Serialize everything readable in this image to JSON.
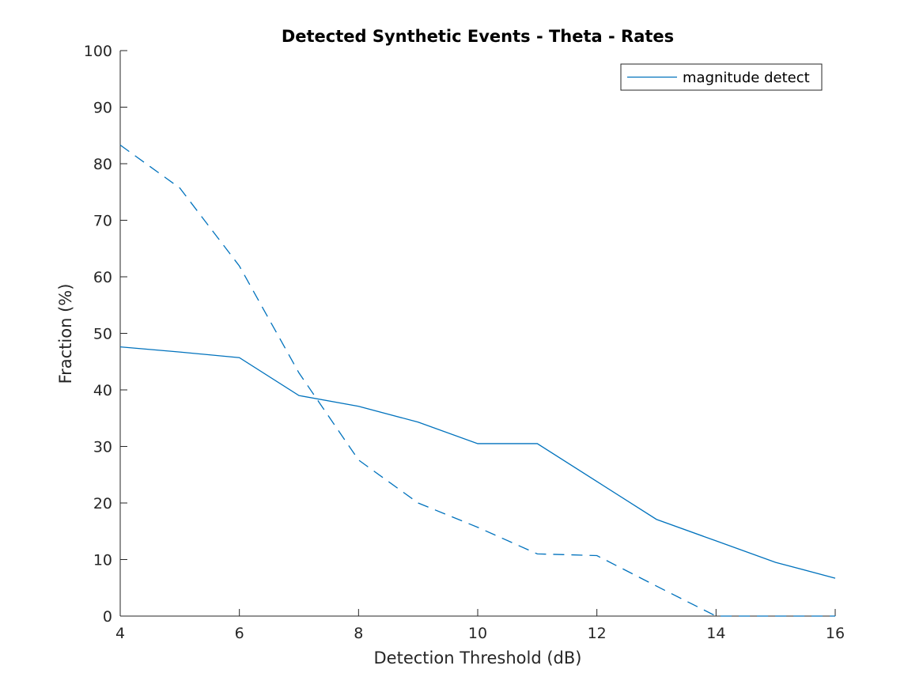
{
  "chart_data": {
    "type": "line",
    "title": "Detected Synthetic Events - Theta - Rates",
    "xlabel": "Detection Threshold (dB)",
    "ylabel": "Fraction (%)",
    "xlim": [
      4,
      16
    ],
    "ylim": [
      0,
      100
    ],
    "xticks": [
      "4",
      "6",
      "8",
      "10",
      "12",
      "14",
      "16"
    ],
    "yticks": [
      "0",
      "10",
      "20",
      "30",
      "40",
      "50",
      "60",
      "70",
      "80",
      "90",
      "100"
    ],
    "grid": false,
    "legend_position": "top-right",
    "x": [
      4,
      5,
      6,
      7,
      8,
      9,
      10,
      11,
      12,
      13,
      14,
      15,
      16
    ],
    "series": [
      {
        "name": "magnitude detect",
        "style": "solid",
        "color": "#0072BD",
        "values": [
          47.6,
          46.7,
          45.7,
          39.0,
          37.1,
          34.3,
          30.5,
          30.5,
          23.8,
          17.1,
          13.3,
          9.5,
          6.7
        ]
      },
      {
        "style": "dashed",
        "color": "#0072BD",
        "values": [
          83.3,
          75.7,
          61.9,
          43.0,
          27.6,
          20.0,
          15.7,
          11.0,
          10.7,
          5.3,
          0,
          0,
          0
        ]
      }
    ],
    "legend": [
      "magnitude detect"
    ]
  }
}
